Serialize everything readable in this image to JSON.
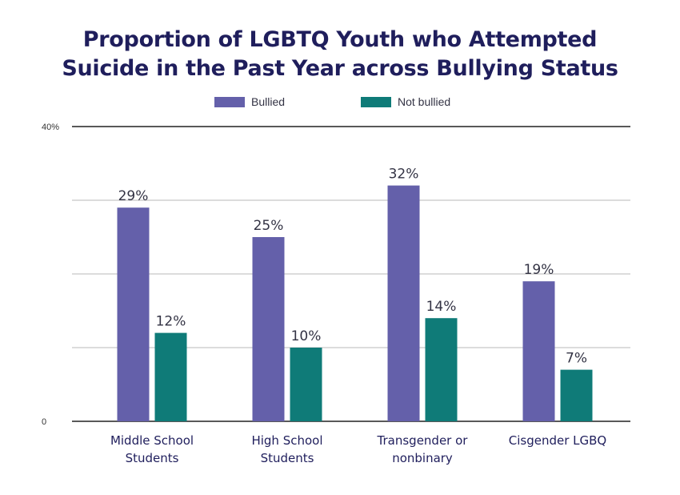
{
  "title_lines": [
    "Proportion of LGBTQ Youth who Attempted",
    "Suicide in the Past Year across Bullying Status"
  ],
  "legend": {
    "bullied": "Bullied",
    "not_bullied": "Not bullied"
  },
  "colors": {
    "bullied": "#6460aa",
    "not_bullied": "#0f7b78",
    "title": "#1f1e5c"
  },
  "chart_data": {
    "type": "bar",
    "title": "Proportion of LGBTQ Youth who Attempted Suicide in the Past Year across Bullying Status",
    "categories": [
      [
        "Middle School",
        "Students"
      ],
      [
        "High School",
        "Students"
      ],
      [
        "Transgender or",
        "nonbinary"
      ],
      [
        "Cisgender LGBQ"
      ]
    ],
    "series": [
      {
        "name": "Bullied",
        "values": [
          29,
          25,
          32,
          19
        ],
        "labels": [
          "29%",
          "25%",
          "32%",
          "19%"
        ]
      },
      {
        "name": "Not bullied",
        "values": [
          12,
          10,
          14,
          7
        ],
        "labels": [
          "12%",
          "10%",
          "14%",
          "7%"
        ]
      }
    ],
    "y_ticks": [
      {
        "value": 0,
        "label": "0"
      },
      {
        "value": 40,
        "label": "40%"
      }
    ],
    "ylim": [
      0,
      40
    ],
    "gridlines": [
      10,
      20,
      30
    ],
    "grid": true,
    "legend_position": "top-center",
    "xlabel": "",
    "ylabel": ""
  }
}
